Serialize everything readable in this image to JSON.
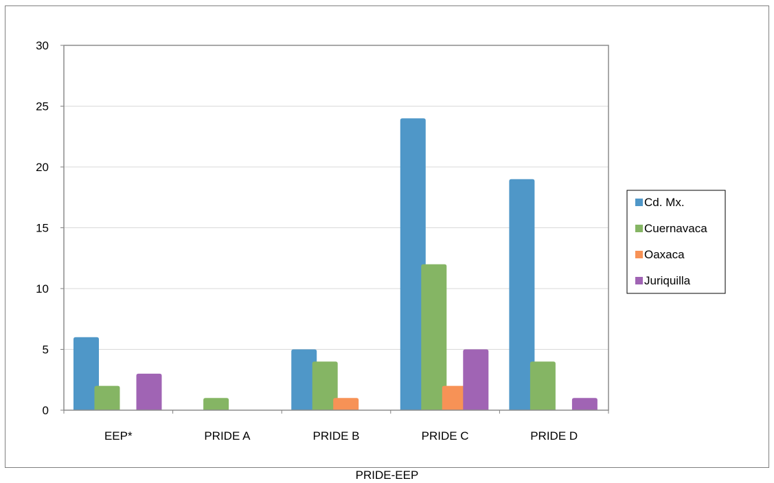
{
  "chart_data": {
    "type": "bar",
    "categories": [
      "EEP*",
      "PRIDE A",
      "PRIDE B",
      "PRIDE C",
      "PRIDE D"
    ],
    "series": [
      {
        "name": "Cd. Mx.",
        "color": "#4f97c8",
        "values": [
          6,
          0,
          5,
          24,
          19
        ]
      },
      {
        "name": "Cuernavaca",
        "color": "#85b564",
        "values": [
          2,
          1,
          4,
          12,
          4
        ]
      },
      {
        "name": "Oaxaca",
        "color": "#f79256",
        "values": [
          0,
          0,
          1,
          2,
          0
        ]
      },
      {
        "name": "Juriquilla",
        "color": "#a064b4",
        "values": [
          3,
          0,
          0,
          5,
          1
        ]
      }
    ],
    "xlabel": "PRIDE-EEP",
    "ylabel": "",
    "ylim": [
      0,
      30
    ],
    "yticks": [
      0,
      5,
      10,
      15,
      20,
      25,
      30
    ],
    "grid": true,
    "legend_position": "right"
  }
}
